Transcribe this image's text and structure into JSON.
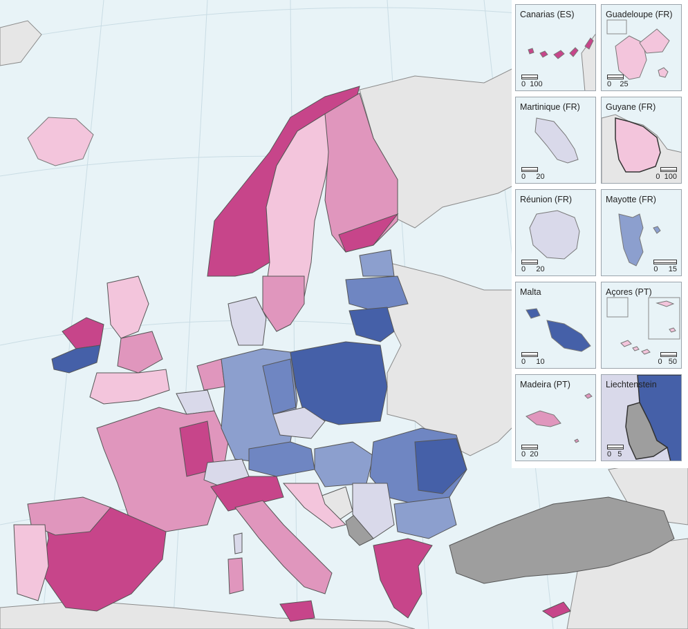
{
  "colors": {
    "sea": "#e8f3f7",
    "non_eu_land": "#e6e6e6",
    "no_data": "#9e9e9e",
    "border": "#555555",
    "graticule": "#c9dce4",
    "class_pink_5": "#c7458a",
    "class_pink_4": "#e096bd",
    "class_pink_3": "#f3c5dc",
    "class_neutral": "#d9d9ea",
    "class_blue_2": "#8c9fce",
    "class_blue_3": "#6f86c2",
    "class_blue_4": "#4560a8"
  },
  "insets": [
    {
      "title": "Canarias (ES)",
      "scale": [
        "0",
        "100"
      ]
    },
    {
      "title": "Guadeloupe (FR)",
      "scale": [
        "0",
        "25"
      ]
    },
    {
      "title": "Martinique (FR)",
      "scale": [
        "0",
        "20"
      ]
    },
    {
      "title": "Guyane (FR)",
      "scale": [
        "0",
        "100"
      ]
    },
    {
      "title": "Réunion (FR)",
      "scale": [
        "0",
        "20"
      ]
    },
    {
      "title": "Mayotte (FR)",
      "scale": [
        "0",
        "15"
      ]
    },
    {
      "title": "Malta",
      "scale": [
        "0",
        "10"
      ]
    },
    {
      "title": "Açores (PT)",
      "scale": [
        "0",
        "50"
      ]
    },
    {
      "title": "Madeira (PT)",
      "scale": [
        "0",
        "20"
      ]
    },
    {
      "title": "Liechtenstein",
      "scale": [
        "0",
        "5"
      ]
    }
  ]
}
